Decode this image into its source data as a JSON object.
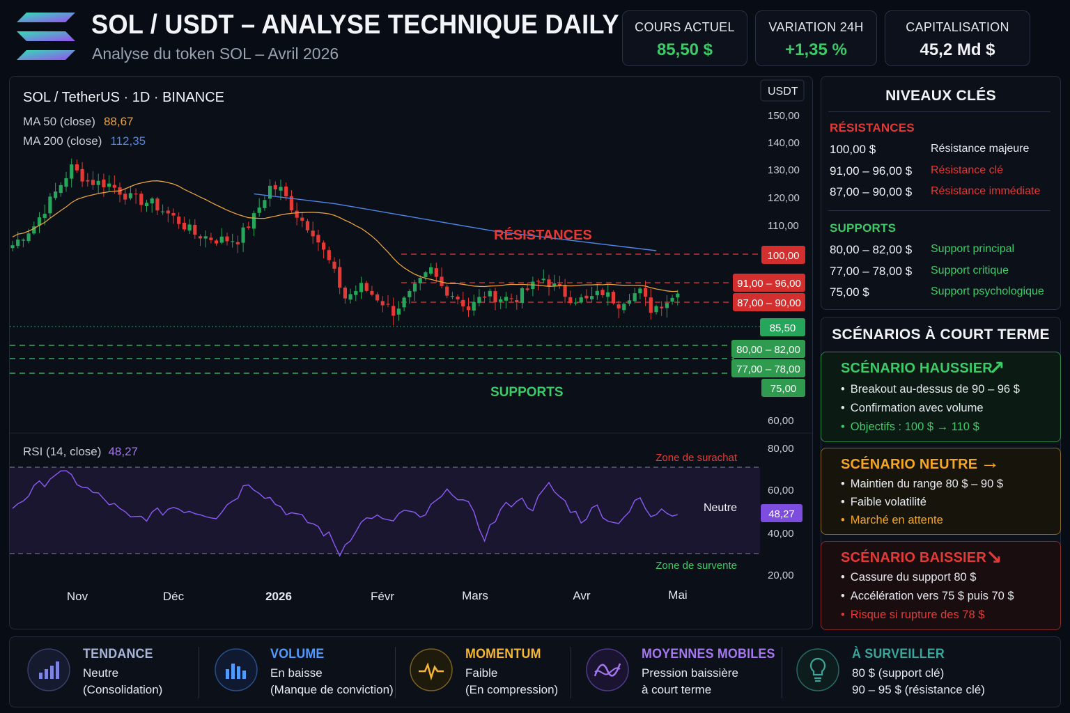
{
  "header": {
    "title": "SOL / USDT – ANALYSE TECHNIQUE DAILY",
    "subtitle": "Analyse du token SOL – Avril 2026",
    "stats": [
      {
        "label": "COURS ACTUEL",
        "value": "85,50 $",
        "color": "#3ccb68"
      },
      {
        "label": "VARIATION 24H",
        "value": "+1,35 %",
        "color": "#3ccb68"
      },
      {
        "label": "CAPITALISATION",
        "value": "45,2 Md $",
        "color": "#f2f4f8"
      }
    ]
  },
  "chart": {
    "symbol": "SOL / TetherUS · 1D · BINANCE",
    "ma50_label": "MA 50 (close)",
    "ma50_value": "88,67",
    "ma200_label": "MA 200 (close)",
    "ma200_value": "112,35",
    "currency": "USDT",
    "price_ticks": [
      "150,00",
      "140,00",
      "130,00",
      "120,00",
      "110,00",
      "60,00"
    ],
    "res_label": "RÉSISTANCES",
    "sup_label": "SUPPORTS",
    "level_badges": [
      "100,00",
      "91,00 – 96,00",
      "87,00 – 90,00",
      "85,50",
      "80,00 – 82,00",
      "77,00 – 78,00",
      "75,00"
    ],
    "rsi_label": "RSI (14, close)",
    "rsi_value": "48,27",
    "rsi_ticks": [
      "80,00",
      "60,00",
      "40,00",
      "20,00"
    ],
    "overbought": "Zone de surachat",
    "oversold": "Zone de survente",
    "neutral": "Neutre",
    "months": [
      "Nov",
      "Déc",
      "2026",
      "Févr",
      "Mars",
      "Avr",
      "Mai"
    ],
    "colors": {
      "up": "#26a65b",
      "down": "#e53935",
      "ma50": "#e8a33a",
      "ma200": "#4f86e8",
      "rsi": "#8b5cf6",
      "resistance": "#e53935",
      "support": "#3ccb68"
    }
  },
  "chart_data": {
    "type": "candlestick",
    "title": "SOL / TetherUS · 1D · BINANCE",
    "ylabel": "USDT",
    "ylim": [
      60,
      150
    ],
    "x_labels": [
      "Nov",
      "Déc",
      "2026",
      "Févr",
      "Mars",
      "Avr",
      "Mai"
    ],
    "close_path": [
      [
        0,
        103
      ],
      [
        4,
        110
      ],
      [
        8,
        122
      ],
      [
        11,
        131
      ],
      [
        14,
        126
      ],
      [
        18,
        125
      ],
      [
        22,
        120
      ],
      [
        26,
        118
      ],
      [
        30,
        113
      ],
      [
        34,
        107
      ],
      [
        38,
        105
      ],
      [
        42,
        105
      ],
      [
        45,
        113
      ],
      [
        48,
        124
      ],
      [
        50,
        123
      ],
      [
        53,
        114
      ],
      [
        56,
        108
      ],
      [
        59,
        97
      ],
      [
        62,
        84
      ],
      [
        65,
        88
      ],
      [
        68,
        84
      ],
      [
        71,
        79
      ],
      [
        74,
        85
      ],
      [
        78,
        94
      ],
      [
        80,
        88
      ],
      [
        83,
        84
      ],
      [
        85,
        80
      ],
      [
        88,
        85
      ],
      [
        91,
        84
      ],
      [
        94,
        84
      ],
      [
        96,
        87
      ],
      [
        99,
        91
      ],
      [
        101,
        88
      ],
      [
        104,
        84
      ],
      [
        107,
        83
      ],
      [
        110,
        86
      ],
      [
        113,
        82
      ],
      [
        115,
        85
      ],
      [
        117,
        86
      ],
      [
        119,
        80
      ],
      [
        121,
        82
      ],
      [
        123,
        84
      ],
      [
        124,
        85.5
      ]
    ],
    "ma50": {
      "last": 88.67
    },
    "ma200": {
      "last": 112.35
    },
    "current_price": 85.5,
    "resistances": [
      100,
      96,
      91,
      90,
      87
    ],
    "supports": [
      82,
      80,
      78,
      77,
      75
    ],
    "rsi": {
      "period": 14,
      "last": 48.27,
      "ylim": [
        20,
        80
      ],
      "overbought": 70,
      "oversold": 30,
      "path": [
        [
          0,
          52
        ],
        [
          4,
          60
        ],
        [
          8,
          68
        ],
        [
          11,
          66
        ],
        [
          14,
          60
        ],
        [
          18,
          54
        ],
        [
          22,
          46
        ],
        [
          26,
          48
        ],
        [
          30,
          52
        ],
        [
          34,
          50
        ],
        [
          38,
          48
        ],
        [
          42,
          58
        ],
        [
          44,
          64
        ],
        [
          46,
          60
        ],
        [
          50,
          52
        ],
        [
          53,
          47
        ],
        [
          56,
          44
        ],
        [
          59,
          38
        ],
        [
          61,
          30
        ],
        [
          64,
          42
        ],
        [
          67,
          48
        ],
        [
          70,
          44
        ],
        [
          73,
          50
        ],
        [
          76,
          46
        ],
        [
          79,
          54
        ],
        [
          82,
          60
        ],
        [
          85,
          52
        ],
        [
          88,
          38
        ],
        [
          91,
          50
        ],
        [
          94,
          56
        ],
        [
          97,
          52
        ],
        [
          100,
          62
        ],
        [
          103,
          54
        ],
        [
          106,
          46
        ],
        [
          109,
          52
        ],
        [
          112,
          44
        ],
        [
          115,
          50
        ],
        [
          117,
          56
        ],
        [
          119,
          46
        ],
        [
          121,
          52
        ],
        [
          124,
          48.27
        ]
      ]
    }
  },
  "levels": {
    "title": "NIVEAUX CLÉS",
    "res_head": "RÉSISTANCES",
    "resistances": [
      {
        "price": "100,00 $",
        "desc": "Résistance majeure",
        "color": "#e6e9ef"
      },
      {
        "price": "91,00 – 96,00 $",
        "desc": "Résistance clé",
        "color": "#e53935"
      },
      {
        "price": "87,00 – 90,00 $",
        "desc": "Résistance immédiate",
        "color": "#e53935"
      }
    ],
    "sup_head": "SUPPORTS",
    "supports": [
      {
        "price": "80,00 – 82,00 $",
        "desc": "Support principal",
        "color": "#3ccb68"
      },
      {
        "price": "77,00 – 78,00 $",
        "desc": "Support critique",
        "color": "#3ccb68"
      },
      {
        "price": "75,00 $",
        "desc": "Support psychologique",
        "color": "#3ccb68"
      }
    ]
  },
  "scenarios": {
    "title": "SCÉNARIOS À COURT TERME",
    "items": [
      {
        "title": "SCÉNARIO HAUSSIER",
        "arrow": "↗",
        "color": "#3ccb68",
        "bullets": [
          "Breakout au-dessus de 90 – 96 $",
          "Confirmation avec volume",
          "Objectifs : 100 $ → 110 $"
        ]
      },
      {
        "title": "SCÉNARIO NEUTRE",
        "arrow": "→",
        "color": "#f5a623",
        "bullets": [
          "Maintien du range 80 $ – 90 $",
          "Faible volatilité",
          "Marché en attente"
        ]
      },
      {
        "title": "SCÉNARIO BAISSIER",
        "arrow": "↘",
        "color": "#e53935",
        "bullets": [
          "Cassure du support 80 $",
          "Accélération vers 75 $ puis 70 $",
          "Risque si rupture des 78 $"
        ]
      }
    ]
  },
  "bottom": [
    {
      "title": "TENDANCE",
      "l1": "Neutre",
      "l2": "(Consolidation)",
      "color": "#a8b4d8",
      "icon": "bar-chart-icon"
    },
    {
      "title": "VOLUME",
      "l1": "En baisse",
      "l2": "(Manque de conviction)",
      "color": "#4f9bff",
      "icon": "volume-bars-icon"
    },
    {
      "title": "MOMENTUM",
      "l1": "Faible",
      "l2": "(En compression)",
      "color": "#f5b731",
      "icon": "pulse-icon"
    },
    {
      "title": "MOYENNES MOBILES",
      "l1": "Pression baissière",
      "l2": "à court terme",
      "color": "#a678f0",
      "icon": "wave-icon"
    },
    {
      "title": "À SURVEILLER",
      "l1": "80 $ (support clé)",
      "l2": "90 – 95 $ (résistance clé)",
      "color": "#3aa69a",
      "icon": "lightbulb-icon"
    }
  ]
}
